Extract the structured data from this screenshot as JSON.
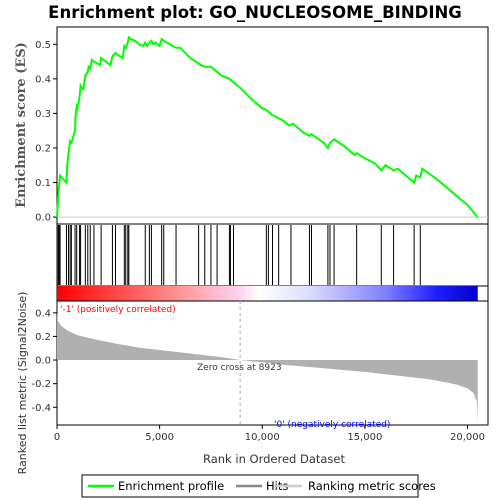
{
  "chart_data": {
    "type": "line",
    "title": "Enrichment plot: GO_NUCLEOSOME_BINDING",
    "top_panel": {
      "ylabel": "Enrichment score (ES)",
      "ylim": [
        -0.02,
        0.55
      ],
      "yticks": [
        "0.0",
        "0.1",
        "0.2",
        "0.3",
        "0.4",
        "0.5"
      ],
      "ytick_values": [
        0.0,
        0.1,
        0.2,
        0.3,
        0.4,
        0.5
      ],
      "series": [
        {
          "name": "Enrichment profile",
          "color": "#00ff00",
          "x": [
            0,
            60,
            100,
            150,
            460,
            500,
            560,
            640,
            700,
            880,
            900,
            960,
            1000,
            1100,
            1150,
            1200,
            1280,
            1380,
            1500,
            1540,
            1620,
            1700,
            1800,
            2100,
            2150,
            2600,
            2700,
            2850,
            2950,
            3200,
            3280,
            3350,
            3450,
            3500,
            3600,
            3800,
            4000,
            4200,
            4300,
            4400,
            4500,
            4600,
            4700,
            4800,
            5000,
            5100,
            5200,
            5500,
            5800,
            6000,
            6500,
            6900,
            7000,
            7200,
            7500,
            7800,
            8000,
            8400,
            8600,
            9000,
            9500,
            10000,
            10200,
            10500,
            11000,
            11300,
            11500,
            12000,
            12300,
            12400,
            13000,
            13200,
            13300,
            13500,
            14000,
            14500,
            14600,
            15000,
            15500,
            15800,
            16000,
            16400,
            16600,
            17000,
            17400,
            17500,
            17700,
            17800,
            18500,
            19000,
            19500,
            20000,
            20500
          ],
          "y": [
            0.0,
            0.06,
            0.09,
            0.12,
            0.1,
            0.15,
            0.185,
            0.22,
            0.215,
            0.25,
            0.29,
            0.32,
            0.315,
            0.35,
            0.38,
            0.375,
            0.37,
            0.41,
            0.42,
            0.435,
            0.43,
            0.455,
            0.45,
            0.44,
            0.46,
            0.44,
            0.465,
            0.475,
            0.47,
            0.46,
            0.495,
            0.49,
            0.505,
            0.52,
            0.515,
            0.51,
            0.5,
            0.495,
            0.505,
            0.495,
            0.505,
            0.51,
            0.5,
            0.505,
            0.495,
            0.515,
            0.51,
            0.5,
            0.49,
            0.49,
            0.46,
            0.445,
            0.44,
            0.435,
            0.435,
            0.42,
            0.41,
            0.4,
            0.39,
            0.37,
            0.34,
            0.315,
            0.31,
            0.295,
            0.28,
            0.265,
            0.27,
            0.245,
            0.235,
            0.24,
            0.215,
            0.2,
            0.215,
            0.225,
            0.205,
            0.18,
            0.185,
            0.17,
            0.155,
            0.135,
            0.15,
            0.135,
            0.14,
            0.12,
            0.1,
            0.12,
            0.115,
            0.14,
            0.11,
            0.085,
            0.06,
            0.035,
            0.0
          ]
        }
      ]
    },
    "hits": [
      0,
      60,
      100,
      150,
      460,
      560,
      640,
      700,
      880,
      960,
      1100,
      1150,
      1380,
      1500,
      1620,
      1800,
      2150,
      2700,
      2850,
      3280,
      3350,
      3450,
      3500,
      4300,
      4500,
      4600,
      5100,
      5200,
      5800,
      6900,
      7200,
      7500,
      7800,
      8400,
      8450,
      8600,
      10200,
      10300,
      10500,
      10800,
      11400,
      12300,
      12400,
      13200,
      13300,
      13500,
      14600,
      15800,
      16400,
      17400,
      17700
    ],
    "bottom_panel": {
      "ylabel": "Ranked list metric (Signal2Noise)",
      "ylim": [
        -0.55,
        0.5
      ],
      "yticks": [
        "0.4",
        "0.2",
        "0.0",
        "-0.2",
        "-0.4"
      ],
      "ytick_values": [
        0.4,
        0.2,
        0.0,
        -0.2,
        -0.4
      ],
      "metric_x": [
        0,
        50,
        200,
        500,
        1000,
        2000,
        3000,
        4000,
        5000,
        6000,
        7000,
        8000,
        8923,
        10000,
        11000,
        12000,
        13000,
        14000,
        15000,
        16000,
        17000,
        18000,
        19000,
        19500,
        20000,
        20300,
        20450,
        20500
      ],
      "metric_y": [
        0.4,
        0.33,
        0.29,
        0.25,
        0.21,
        0.17,
        0.135,
        0.105,
        0.085,
        0.065,
        0.045,
        0.025,
        0.0,
        -0.02,
        -0.04,
        -0.055,
        -0.07,
        -0.085,
        -0.1,
        -0.12,
        -0.14,
        -0.16,
        -0.19,
        -0.21,
        -0.24,
        -0.28,
        -0.35,
        -0.52
      ],
      "zero_cross_label": "Zero cross at 8923",
      "zero_cross": 8923,
      "pos_label": "'-1' (positively correlated)",
      "neg_label": "'0' (negatively correlated)"
    },
    "xlabel": "Rank in Ordered Dataset",
    "xlim": [
      0,
      21000
    ],
    "xticks": [
      "0",
      "5,000",
      "10,000",
      "15,000",
      "20,000"
    ],
    "xtick_values": [
      0,
      5000,
      10000,
      15000,
      20000
    ],
    "n_ranked": 20500,
    "colors": {
      "profile": "#00ff00",
      "hits": "#000000",
      "metric_fill": "#b0b0b0",
      "pos_label": "#ff0000",
      "neg_label": "#0000ff",
      "zero_line": "#aaaaaa"
    },
    "legend": {
      "placement": "bottom",
      "entries": [
        {
          "label": "Enrichment profile",
          "color": "#00ff00"
        },
        {
          "label": "Hits",
          "color": "#888888"
        },
        {
          "label": "Ranking metric scores",
          "color": "#cccccc"
        }
      ]
    }
  }
}
